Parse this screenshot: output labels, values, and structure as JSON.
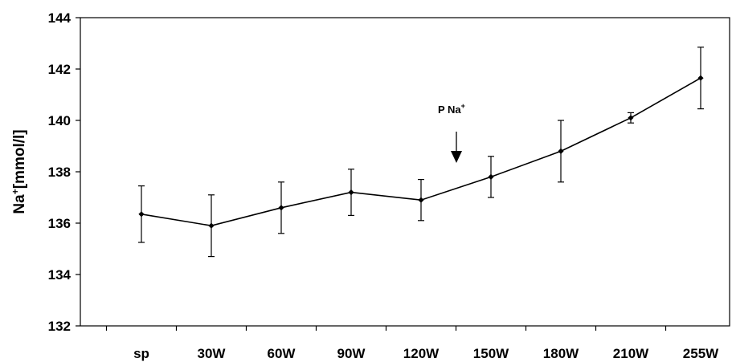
{
  "chart_data": {
    "type": "line",
    "ylabel_main": "Na",
    "ylabel_sup": "+",
    "ylabel_rest": "[mmol/l]",
    "xlabel": "",
    "title": "",
    "ylim": [
      132,
      144
    ],
    "yticks": [
      "132",
      "134",
      "136",
      "138",
      "140",
      "142",
      "144"
    ],
    "categories": [
      "sp",
      "30W",
      "60W",
      "90W",
      "120W",
      "150W",
      "180W",
      "210W",
      "255W"
    ],
    "series": [
      {
        "values": [
          136.35,
          135.9,
          136.6,
          137.2,
          136.9,
          137.8,
          138.8,
          140.1,
          141.65
        ],
        "error": [
          1.1,
          1.2,
          1.0,
          0.9,
          0.8,
          0.8,
          1.2,
          0.2,
          1.2
        ]
      }
    ],
    "annotation": {
      "text_main": "P Na",
      "text_sup": "+",
      "x_value": 139.5,
      "points_to": "down"
    },
    "grid": false,
    "legend": "none",
    "colors": {
      "line": "#000000",
      "marker": "#000000",
      "background": "#ffffff"
    }
  }
}
